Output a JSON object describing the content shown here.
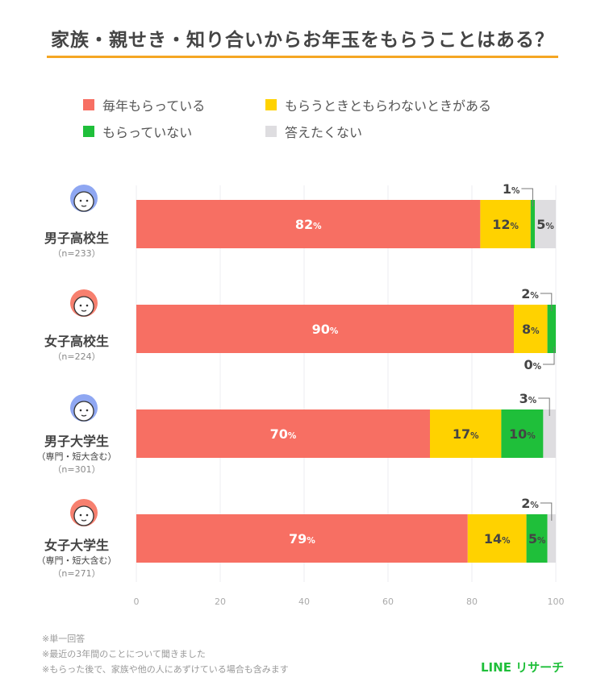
{
  "chart_data": {
    "type": "bar",
    "orientation": "horizontal",
    "stacked": true,
    "title": "家族・親せき・知り合いからお年玉をもらうことはある？",
    "legend": [
      "毎年もらっている",
      "もらうときともらわないときがある",
      "もらっていない",
      "答えたくない"
    ],
    "legend_placement": "top",
    "colors": [
      "#f76f63",
      "#ffd200",
      "#1fbf3a",
      "#dedde0"
    ],
    "categories": [
      {
        "name": "男子高校生",
        "sub": "",
        "n": "（n=233）"
      },
      {
        "name": "女子高校生",
        "sub": "",
        "n": "（n=224）"
      },
      {
        "name": "男子大学生",
        "sub": "（専門・短大含む）",
        "n": "（n=301）"
      },
      {
        "name": "女子大学生",
        "sub": "（専門・短大含む）",
        "n": "（n=271）"
      }
    ],
    "series": [
      {
        "name": "毎年もらっている",
        "values": [
          82,
          90,
          70,
          79
        ]
      },
      {
        "name": "もらうときともらわないときがある",
        "values": [
          12,
          8,
          17,
          14
        ]
      },
      {
        "name": "もらっていない",
        "values": [
          1,
          2,
          10,
          5
        ]
      },
      {
        "name": "答えたくない",
        "values": [
          5,
          0,
          3,
          2
        ]
      }
    ],
    "xlim": [
      0,
      100
    ],
    "xticks": [
      "0",
      "20",
      "40",
      "60",
      "80",
      "100"
    ],
    "grid": true,
    "unit": "%"
  },
  "notes": [
    "※単一回答",
    "※最近の3年間のことについて聞きました",
    "※もらった後で、家族や他の人にあずけている場合も含みます"
  ],
  "logo": "LINE リサーチ"
}
